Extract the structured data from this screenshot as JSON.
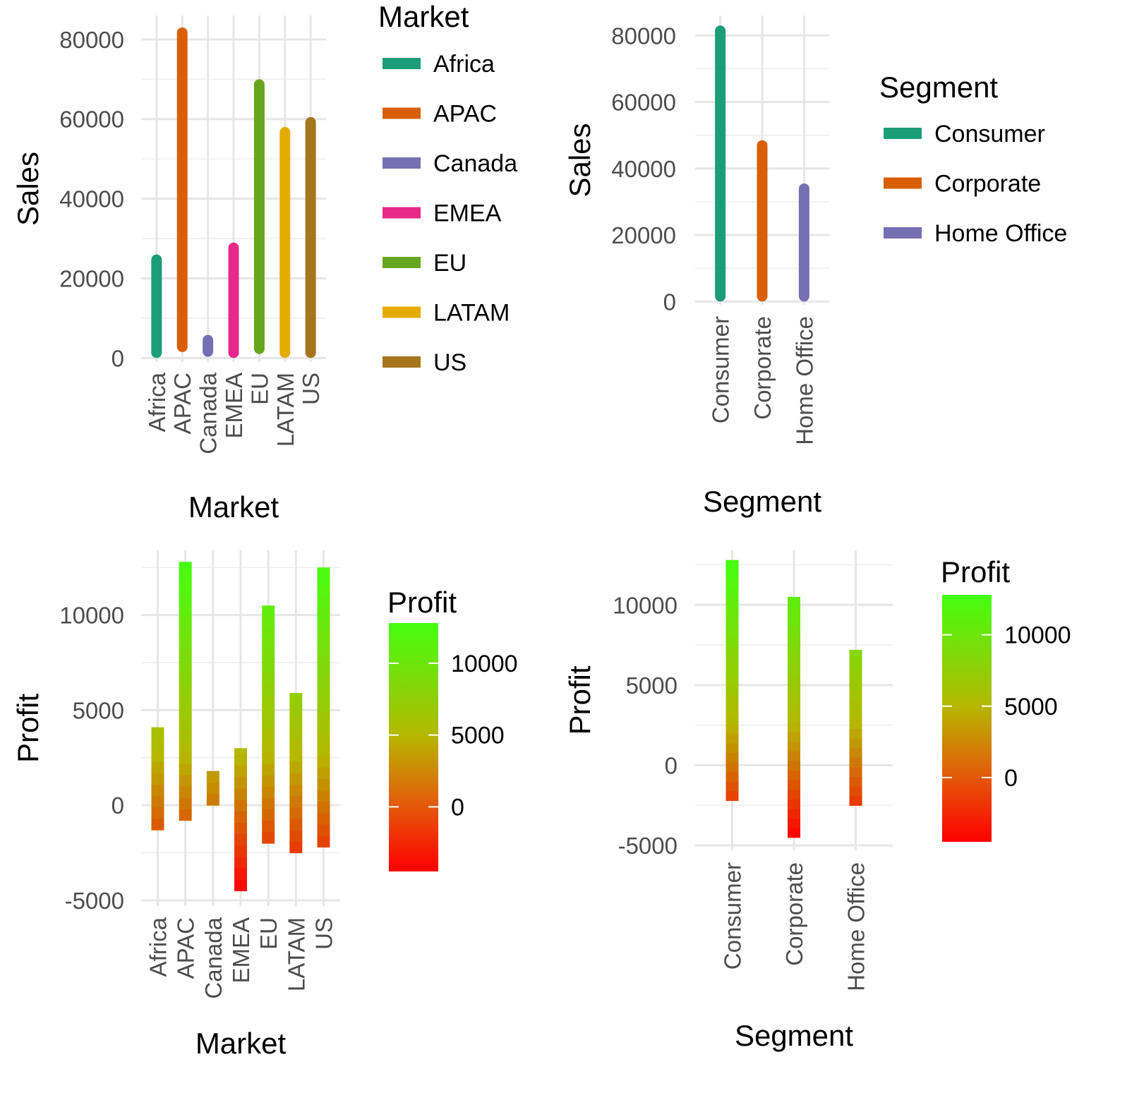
{
  "chart_data": [
    {
      "type": "bar",
      "id": "sales_by_market",
      "title": "",
      "xlabel": "Market",
      "ylabel": "Sales",
      "categories": [
        "Africa",
        "APAC",
        "Canada",
        "EMEA",
        "EU",
        "LATAM",
        "US"
      ],
      "ranges": [
        [
          0,
          26000
        ],
        [
          1500,
          83000
        ],
        [
          300,
          5800
        ],
        [
          0,
          29000
        ],
        [
          1000,
          70000
        ],
        [
          0,
          58000
        ],
        [
          0,
          60500
        ]
      ],
      "colors": [
        "#1b9e77",
        "#d95f02",
        "#7570b3",
        "#e7298a",
        "#66a61e",
        "#e6ab02",
        "#a6761d"
      ],
      "y_ticks": [
        0,
        20000,
        40000,
        60000,
        80000
      ],
      "ylim": [
        -1000,
        86000
      ],
      "grid": true,
      "legend": {
        "title": "Market",
        "position": "right",
        "entries": [
          "Africa",
          "APAC",
          "Canada",
          "EMEA",
          "EU",
          "LATAM",
          "US"
        ]
      }
    },
    {
      "type": "bar",
      "id": "sales_by_segment",
      "title": "",
      "xlabel": "Segment",
      "ylabel": "Sales",
      "categories": [
        "Consumer",
        "Corporate",
        "Home Office"
      ],
      "ranges": [
        [
          0,
          83000
        ],
        [
          0,
          48500
        ],
        [
          0,
          35500
        ]
      ],
      "colors": [
        "#1b9e77",
        "#d95f02",
        "#7570b3"
      ],
      "y_ticks": [
        0,
        20000,
        40000,
        60000,
        80000
      ],
      "ylim": [
        -1000,
        86000
      ],
      "grid": true,
      "legend": {
        "title": "Segment",
        "position": "right",
        "entries": [
          "Consumer",
          "Corporate",
          "Home Office"
        ]
      }
    },
    {
      "type": "bar",
      "id": "profit_by_market",
      "title": "",
      "xlabel": "Market",
      "ylabel": "Profit",
      "categories": [
        "Africa",
        "APAC",
        "Canada",
        "EMEA",
        "EU",
        "LATAM",
        "US"
      ],
      "ranges": [
        [
          -1300,
          4100
        ],
        [
          -800,
          12800
        ],
        [
          0,
          1800
        ],
        [
          -4500,
          3000
        ],
        [
          -2000,
          10500
        ],
        [
          -2500,
          5900
        ],
        [
          -2200,
          12500
        ]
      ],
      "color_scale": {
        "low": "#ff0000",
        "mid": "#b5b800",
        "high": "#44ff10",
        "min": -4500,
        "max": 12800
      },
      "y_ticks": [
        -5000,
        0,
        5000,
        10000
      ],
      "ylim": [
        -5300,
        13400
      ],
      "grid": true,
      "legend": {
        "title": "Profit",
        "position": "right",
        "type": "colorbar",
        "ticks": [
          0,
          5000,
          10000
        ],
        "range": [
          -4500,
          12800
        ]
      }
    },
    {
      "type": "bar",
      "id": "profit_by_segment",
      "title": "",
      "xlabel": "Segment",
      "ylabel": "Profit",
      "categories": [
        "Consumer",
        "Corporate",
        "Home Office"
      ],
      "ranges": [
        [
          -2200,
          12800
        ],
        [
          -4500,
          10500
        ],
        [
          -2500,
          7200
        ]
      ],
      "color_scale": {
        "low": "#ff0000",
        "mid": "#b5b800",
        "high": "#44ff10",
        "min": -4500,
        "max": 12800
      },
      "y_ticks": [
        -5000,
        0,
        5000,
        10000
      ],
      "ylim": [
        -5300,
        13400
      ],
      "grid": true,
      "legend": {
        "title": "Profit",
        "position": "right",
        "type": "colorbar",
        "ticks": [
          0,
          5000,
          10000
        ],
        "range": [
          -4500,
          12800
        ]
      }
    }
  ]
}
